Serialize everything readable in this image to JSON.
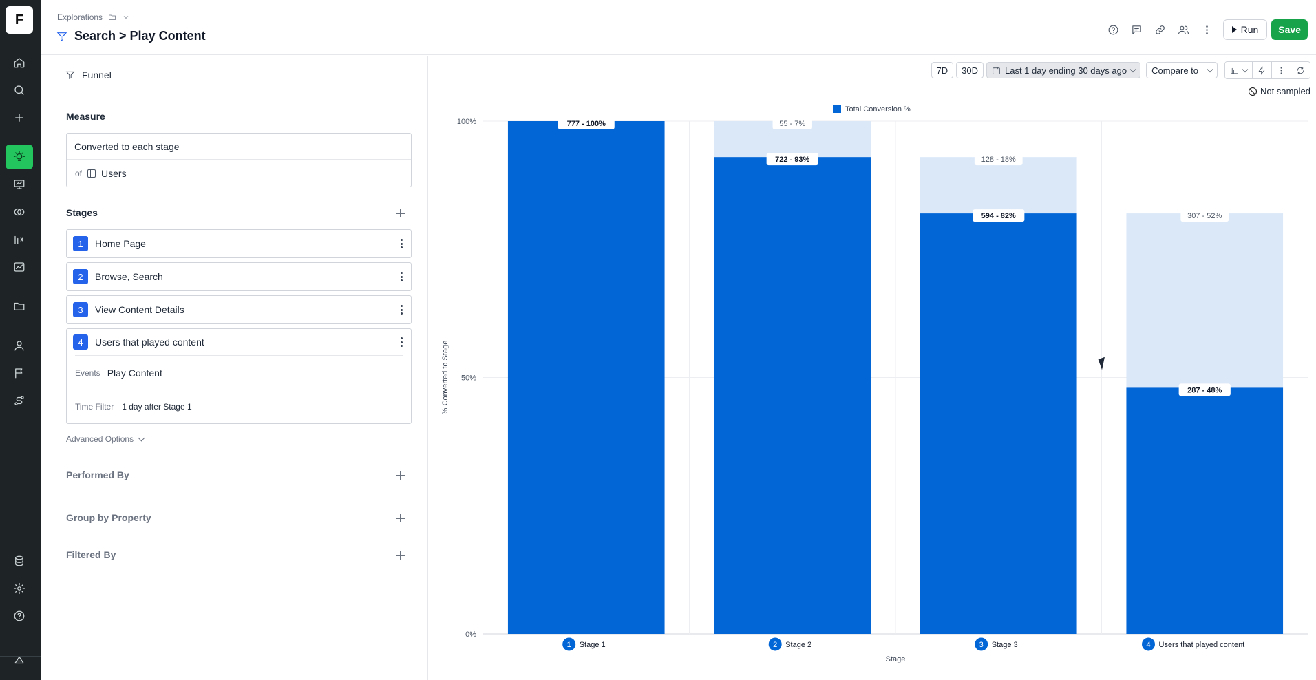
{
  "app": {
    "logo_letter": "F"
  },
  "nav": {
    "items": [
      {
        "icon": "home-icon"
      },
      {
        "icon": "search-icon"
      },
      {
        "icon": "plus-icon"
      },
      {
        "icon": "lightbulb-icon",
        "active": true
      },
      {
        "icon": "presentation-icon"
      },
      {
        "icon": "overlap-circles-icon"
      },
      {
        "icon": "formula-icon"
      },
      {
        "icon": "chart-line-icon"
      },
      {
        "icon": "folder-icon"
      },
      {
        "icon": "user-icon"
      },
      {
        "icon": "flag-icon"
      },
      {
        "icon": "routes-icon"
      },
      {
        "icon": "database-icon"
      },
      {
        "icon": "gear-icon"
      },
      {
        "icon": "help-icon"
      },
      {
        "icon": "brand-icon"
      }
    ]
  },
  "header": {
    "breadcrumb": "Explorations",
    "title": "Search > Play Content",
    "run_label": "Run",
    "save_label": "Save"
  },
  "panel": {
    "top_label": "Funnel",
    "measure": {
      "label": "Measure",
      "value": "Converted to each stage",
      "of_label": "of",
      "of_value": "Users"
    },
    "stages": {
      "label": "Stages",
      "items": [
        {
          "num": "1",
          "label": "Home Page"
        },
        {
          "num": "2",
          "label": "Browse, Search"
        },
        {
          "num": "3",
          "label": "View Content Details"
        },
        {
          "num": "4",
          "label": "Users that played content"
        }
      ],
      "stage4": {
        "events_label": "Events",
        "events_value": "Play Content",
        "time_filter_label": "Time Filter",
        "time_filter_value": "1 day after Stage 1"
      }
    },
    "advanced_options": "Advanced Options",
    "performed_by": "Performed By",
    "group_by": "Group by Property",
    "filtered_by": "Filtered By"
  },
  "toolbar": {
    "range_7d": "7D",
    "range_30d": "30D",
    "date_range": "Last 1 day ending 30 days ago",
    "compare_to": "Compare to",
    "sampling": "Not sampled"
  },
  "chart_data": {
    "type": "bar",
    "stacked": true,
    "legend": "Total Conversion %",
    "legend_position": "top-center",
    "categories": [
      {
        "num": "1",
        "label": "Stage 1"
      },
      {
        "num": "2",
        "label": "Stage 2"
      },
      {
        "num": "3",
        "label": "Stage 3"
      },
      {
        "num": "4",
        "label": "Users that played content"
      }
    ],
    "converted_pct": [
      100,
      93,
      82,
      48
    ],
    "converted_label": [
      "777 - 100%",
      "722 - 93%",
      "594 - 82%",
      "287 - 48%"
    ],
    "dropoff_top_pct": [
      100,
      100,
      93,
      82
    ],
    "dropoff_label": [
      "",
      "55 - 7%",
      "128 - 18%",
      "307 - 52%"
    ],
    "ylabel": "% Converted to Stage",
    "xlabel": "Stage",
    "yticks": [
      "0%",
      "50%",
      "100%"
    ],
    "ylim": [
      0,
      100
    ],
    "colors": {
      "converted": "#0366d6",
      "dropoff": "#dbe8f8"
    }
  }
}
